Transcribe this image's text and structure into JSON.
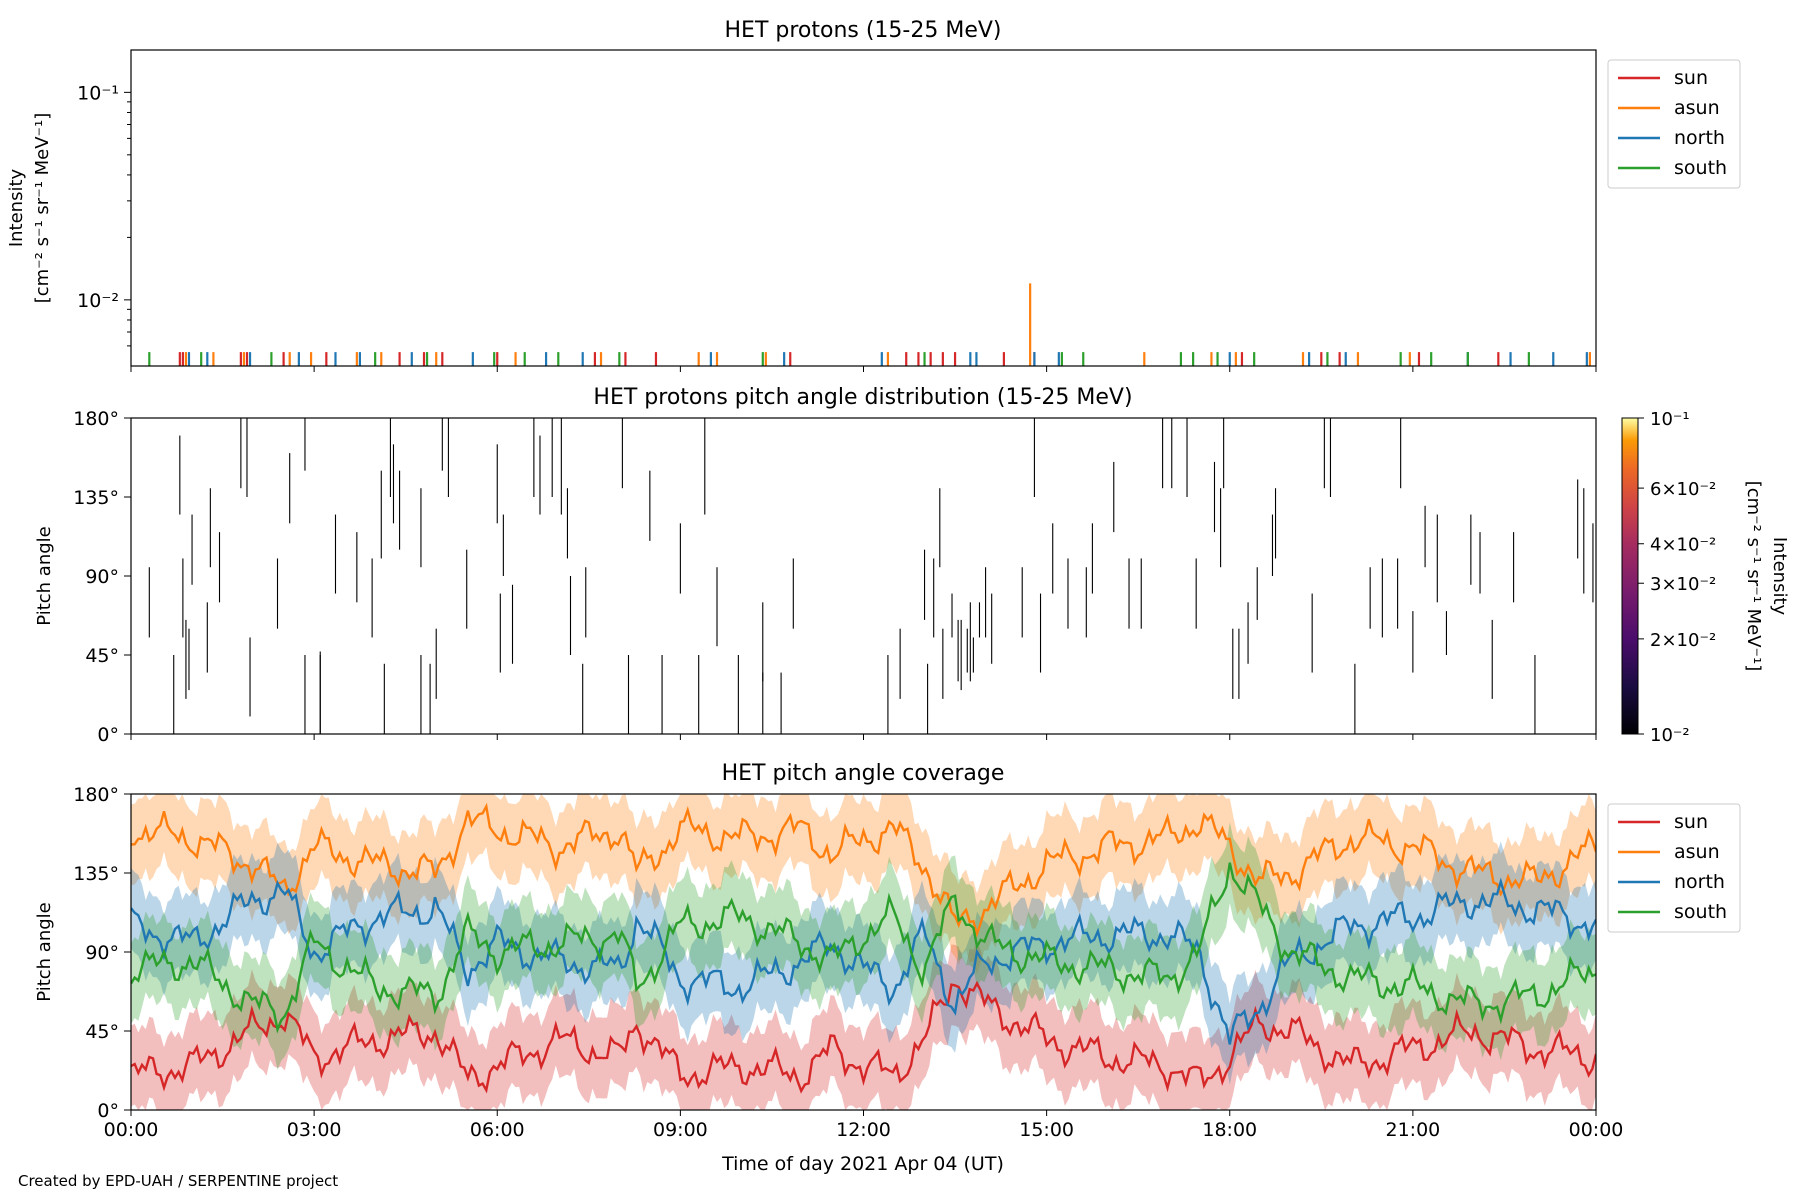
{
  "credit": "Created by EPD-UAH / SERPENTINE project",
  "xlabel": "Time of day 2021 Apr 04 (UT)",
  "xticks": [
    "00:00",
    "03:00",
    "06:00",
    "09:00",
    "12:00",
    "15:00",
    "18:00",
    "21:00",
    "00:00"
  ],
  "colors": {
    "sun": "#d62728",
    "asun": "#ff7f0e",
    "north": "#1f77b4",
    "south": "#2ca02c"
  },
  "legend_labels": [
    "sun",
    "asun",
    "north",
    "south"
  ],
  "chart_data": [
    {
      "type": "line",
      "title": "HET protons (15-25 MeV)",
      "ylabel": [
        "Intensity",
        "[cm⁻² s⁻¹ sr⁻¹ MeV⁻¹]"
      ],
      "yscale": "log",
      "ylim": [
        0.0048,
        0.16
      ],
      "xlim_hours": [
        0,
        24
      ],
      "ytick_labels": [
        "10⁻²",
        "10⁻¹"
      ],
      "ytick_values": [
        0.01,
        0.1
      ],
      "legend": "upper-right outside",
      "note": "sparse single-count spikes near the lower limit, one asun spike to 1.2e-2 at ~14:45",
      "series": [
        {
          "name": "sun",
          "x": [
            0.8,
            0.85,
            1.8,
            1.9,
            2.5,
            3.2,
            4.4,
            4.8,
            5.1,
            6.0,
            7.6,
            8.1,
            8.6,
            10.8,
            12.7,
            12.9,
            13.1,
            13.3,
            13.5,
            14.3,
            14.8,
            18.2,
            19.5,
            19.8,
            21.1,
            22.4
          ],
          "y": [
            0.0056,
            0.0056,
            0.0056,
            0.0056,
            0.0056,
            0.0056,
            0.0056,
            0.0056,
            0.0056,
            0.0056,
            0.0056,
            0.0056,
            0.0056,
            0.0056,
            0.0056,
            0.0056,
            0.0056,
            0.0056,
            0.0056,
            0.0056,
            0.0056,
            0.0056,
            0.0056,
            0.0056,
            0.0056,
            0.0056
          ]
        },
        {
          "name": "asun",
          "x": [
            0.9,
            1.35,
            1.85,
            2.6,
            2.95,
            3.7,
            4.1,
            5.0,
            6.3,
            7.7,
            9.3,
            9.6,
            10.4,
            12.4,
            14.73,
            16.6,
            17.7,
            18.1,
            19.2,
            20.1,
            20.95,
            23.9
          ],
          "y": [
            0.0056,
            0.0056,
            0.0056,
            0.0056,
            0.0056,
            0.0056,
            0.0056,
            0.0056,
            0.0056,
            0.0056,
            0.0056,
            0.0056,
            0.0056,
            0.0056,
            0.012,
            0.0056,
            0.0056,
            0.0056,
            0.0056,
            0.0056,
            0.0056,
            0.0056
          ]
        },
        {
          "name": "north",
          "x": [
            0.95,
            1.25,
            1.95,
            2.75,
            3.35,
            3.75,
            4.6,
            5.6,
            6.8,
            7.4,
            9.5,
            10.7,
            12.3,
            13.75,
            13.85,
            14.8,
            15.2,
            18.0,
            19.3,
            19.9,
            21.9,
            22.6,
            23.3,
            23.85
          ],
          "y": [
            0.0056,
            0.0056,
            0.0056,
            0.0056,
            0.0056,
            0.0056,
            0.0056,
            0.0056,
            0.0056,
            0.0056,
            0.0056,
            0.0056,
            0.0056,
            0.0056,
            0.0056,
            0.0056,
            0.0056,
            0.0056,
            0.0056,
            0.0056,
            0.0056,
            0.0056,
            0.0056,
            0.0056
          ]
        },
        {
          "name": "south",
          "x": [
            0.3,
            1.15,
            2.3,
            4.0,
            4.85,
            5.95,
            6.45,
            7.0,
            8.0,
            10.35,
            13.0,
            15.25,
            15.6,
            17.2,
            17.4,
            17.8,
            18.4,
            19.6,
            20.8,
            21.3,
            21.9,
            22.9
          ],
          "y": [
            0.0056,
            0.0056,
            0.0056,
            0.0056,
            0.0056,
            0.0056,
            0.0056,
            0.0056,
            0.0056,
            0.0056,
            0.0056,
            0.0056,
            0.0056,
            0.0056,
            0.0056,
            0.0056,
            0.0056,
            0.0056,
            0.0056,
            0.0056,
            0.0056,
            0.0056
          ]
        }
      ]
    },
    {
      "type": "heatmap",
      "title": "HET protons pitch angle distribution (15-25 MeV)",
      "ylabel": "Pitch angle",
      "ylim": [
        0,
        180
      ],
      "ytick_labels": [
        "0°",
        "45°",
        "90°",
        "135°",
        "180°"
      ],
      "xlim_hours": [
        0,
        24
      ],
      "colorbar": {
        "label": [
          "Intensity",
          "[cm⁻² s⁻¹ sr⁻¹ MeV⁻¹]"
        ],
        "scale": "log",
        "range": [
          0.01,
          0.1
        ],
        "tick_labels": [
          "10⁻²",
          "2×10⁻²",
          "3×10⁻²",
          "4×10⁻²",
          "6×10⁻²",
          "10⁻¹"
        ],
        "tick_values": [
          0.01,
          0.02,
          0.03,
          0.04,
          0.06,
          0.1
        ],
        "colormap": "inferno"
      },
      "events": [
        [
          0.3,
          55,
          95
        ],
        [
          0.7,
          0,
          45
        ],
        [
          0.8,
          125,
          170
        ],
        [
          0.85,
          55,
          100
        ],
        [
          0.9,
          20,
          65
        ],
        [
          0.95,
          25,
          60
        ],
        [
          1.0,
          85,
          125
        ],
        [
          1.25,
          35,
          75
        ],
        [
          1.3,
          95,
          140
        ],
        [
          1.45,
          75,
          115
        ],
        [
          1.8,
          140,
          180
        ],
        [
          1.9,
          135,
          180
        ],
        [
          1.95,
          10,
          55
        ],
        [
          2.4,
          60,
          100
        ],
        [
          2.6,
          120,
          160
        ],
        [
          2.85,
          150,
          180
        ],
        [
          2.85,
          0,
          45
        ],
        [
          3.1,
          0,
          47
        ],
        [
          3.1,
          0,
          45
        ],
        [
          3.35,
          80,
          125
        ],
        [
          3.7,
          75,
          115
        ],
        [
          3.95,
          55,
          100
        ],
        [
          4.1,
          100,
          150
        ],
        [
          4.15,
          0,
          40
        ],
        [
          4.25,
          135,
          180
        ],
        [
          4.3,
          120,
          165
        ],
        [
          4.4,
          105,
          150
        ],
        [
          4.75,
          95,
          140
        ],
        [
          4.75,
          0,
          45
        ],
        [
          4.9,
          0,
          40
        ],
        [
          5.0,
          20,
          60
        ],
        [
          5.1,
          150,
          180
        ],
        [
          5.2,
          135,
          180
        ],
        [
          5.5,
          60,
          105
        ],
        [
          6.0,
          120,
          165
        ],
        [
          6.05,
          35,
          80
        ],
        [
          6.1,
          90,
          125
        ],
        [
          6.25,
          40,
          85
        ],
        [
          6.6,
          135,
          180
        ],
        [
          6.7,
          125,
          170
        ],
        [
          6.9,
          135,
          180
        ],
        [
          7.05,
          125,
          180
        ],
        [
          7.15,
          100,
          140
        ],
        [
          7.2,
          45,
          90
        ],
        [
          7.4,
          0,
          40
        ],
        [
          7.45,
          55,
          95
        ],
        [
          8.05,
          140,
          180
        ],
        [
          8.15,
          0,
          45
        ],
        [
          8.5,
          110,
          150
        ],
        [
          8.7,
          0,
          45
        ],
        [
          9.0,
          80,
          120
        ],
        [
          9.3,
          0,
          45
        ],
        [
          9.4,
          125,
          180
        ],
        [
          9.6,
          50,
          95
        ],
        [
          9.95,
          0,
          45
        ],
        [
          10.35,
          30,
          75
        ],
        [
          10.35,
          0,
          35
        ],
        [
          10.65,
          0,
          35
        ],
        [
          10.85,
          60,
          100
        ],
        [
          12.4,
          0,
          45
        ],
        [
          12.6,
          20,
          60
        ],
        [
          13.0,
          65,
          105
        ],
        [
          13.05,
          0,
          40
        ],
        [
          13.15,
          55,
          100
        ],
        [
          13.25,
          95,
          140
        ],
        [
          13.3,
          20,
          60
        ],
        [
          13.45,
          55,
          80
        ],
        [
          13.55,
          30,
          65
        ],
        [
          13.6,
          25,
          65
        ],
        [
          13.7,
          35,
          60
        ],
        [
          13.75,
          30,
          75
        ],
        [
          13.8,
          35,
          55
        ],
        [
          13.9,
          55,
          75
        ],
        [
          14.0,
          55,
          95
        ],
        [
          14.1,
          40,
          80
        ],
        [
          14.6,
          55,
          95
        ],
        [
          14.8,
          135,
          180
        ],
        [
          14.9,
          35,
          80
        ],
        [
          15.1,
          80,
          120
        ],
        [
          15.35,
          60,
          100
        ],
        [
          15.65,
          55,
          95
        ],
        [
          15.75,
          80,
          120
        ],
        [
          16.1,
          115,
          155
        ],
        [
          16.35,
          60,
          100
        ],
        [
          16.55,
          60,
          100
        ],
        [
          16.9,
          140,
          180
        ],
        [
          17.05,
          140,
          180
        ],
        [
          17.3,
          135,
          180
        ],
        [
          17.45,
          60,
          100
        ],
        [
          17.75,
          115,
          155
        ],
        [
          17.85,
          95,
          140
        ],
        [
          17.9,
          140,
          180
        ],
        [
          18.05,
          20,
          60
        ],
        [
          18.15,
          20,
          60
        ],
        [
          18.3,
          40,
          75
        ],
        [
          18.45,
          65,
          95
        ],
        [
          18.7,
          90,
          125
        ],
        [
          18.75,
          100,
          140
        ],
        [
          19.35,
          35,
          80
        ],
        [
          19.55,
          140,
          180
        ],
        [
          19.65,
          135,
          180
        ],
        [
          20.05,
          0,
          40
        ],
        [
          20.3,
          60,
          95
        ],
        [
          20.5,
          55,
          100
        ],
        [
          20.75,
          60,
          100
        ],
        [
          20.8,
          140,
          180
        ],
        [
          21.0,
          35,
          70
        ],
        [
          21.2,
          95,
          130
        ],
        [
          21.4,
          75,
          125
        ],
        [
          21.55,
          45,
          70
        ],
        [
          21.95,
          85,
          125
        ],
        [
          22.1,
          80,
          115
        ],
        [
          22.3,
          20,
          65
        ],
        [
          22.65,
          75,
          115
        ],
        [
          23.0,
          0,
          45
        ],
        [
          23.7,
          100,
          145
        ],
        [
          23.8,
          80,
          140
        ],
        [
          23.95,
          75,
          120
        ]
      ]
    },
    {
      "type": "line",
      "title": "HET pitch angle coverage",
      "ylabel": "Pitch angle",
      "ylim": [
        0,
        180
      ],
      "ytick_labels": [
        "0°",
        "45°",
        "90°",
        "135°",
        "180°"
      ],
      "xlim_hours": [
        0,
        24
      ],
      "legend": "upper-right outside",
      "band_halfwidth_deg": 23,
      "series": [
        {
          "name": "sun",
          "x": [
            0,
            1,
            2,
            2.5,
            3,
            4,
            5,
            5.5,
            6,
            7,
            8,
            8.3,
            9,
            10,
            11,
            11.5,
            12,
            12.5,
            13,
            13.5,
            14,
            15,
            16,
            17,
            17.5,
            18,
            18.5,
            19,
            20,
            21,
            22,
            23,
            24
          ],
          "y": [
            20,
            25,
            45,
            55,
            30,
            40,
            45,
            18,
            25,
            40,
            30,
            50,
            20,
            25,
            20,
            35,
            25,
            20,
            40,
            75,
            60,
            40,
            30,
            25,
            15,
            30,
            50,
            45,
            25,
            35,
            45,
            35,
            30
          ]
        },
        {
          "name": "asun",
          "x": [
            0,
            1,
            2,
            2.5,
            3,
            4,
            5,
            5.5,
            6,
            7,
            8,
            8.3,
            9,
            10,
            11,
            11.5,
            12,
            12.5,
            13,
            13.5,
            14,
            15,
            16,
            17,
            17.5,
            18,
            18.5,
            19,
            20,
            21,
            22,
            23,
            24
          ],
          "y": [
            160,
            155,
            140,
            125,
            150,
            140,
            135,
            165,
            160,
            150,
            160,
            135,
            160,
            155,
            160,
            145,
            155,
            160,
            140,
            105,
            115,
            140,
            150,
            155,
            165,
            150,
            130,
            135,
            155,
            150,
            135,
            130,
            150
          ]
        },
        {
          "name": "north",
          "x": [
            0,
            1,
            2,
            2.5,
            3,
            4,
            5,
            5.5,
            6,
            7,
            8,
            8.3,
            9,
            10,
            11,
            11.5,
            12,
            12.5,
            13,
            13.5,
            14,
            15,
            16,
            17,
            17.5,
            18,
            18.5,
            19,
            20,
            21,
            22,
            23,
            24
          ],
          "y": [
            105,
            95,
            120,
            125,
            90,
            110,
            115,
            80,
            95,
            85,
            80,
            110,
            75,
            70,
            85,
            95,
            80,
            70,
            100,
            60,
            85,
            95,
            100,
            100,
            90,
            40,
            60,
            85,
            105,
            110,
            120,
            115,
            105
          ]
        },
        {
          "name": "south",
          "x": [
            0,
            1,
            2,
            2.5,
            3,
            4,
            5,
            5.5,
            6,
            7,
            8,
            8.3,
            9,
            10,
            11,
            11.5,
            12,
            12.5,
            13,
            13.5,
            14,
            15,
            16,
            17,
            17.5,
            18,
            18.5,
            19,
            20,
            21,
            22,
            23,
            24
          ],
          "y": [
            80,
            85,
            60,
            55,
            95,
            70,
            65,
            100,
            90,
            95,
            100,
            70,
            105,
            110,
            95,
            85,
            100,
            110,
            80,
            120,
            95,
            85,
            80,
            75,
            90,
            140,
            115,
            90,
            75,
            70,
            60,
            65,
            80
          ]
        }
      ]
    }
  ]
}
